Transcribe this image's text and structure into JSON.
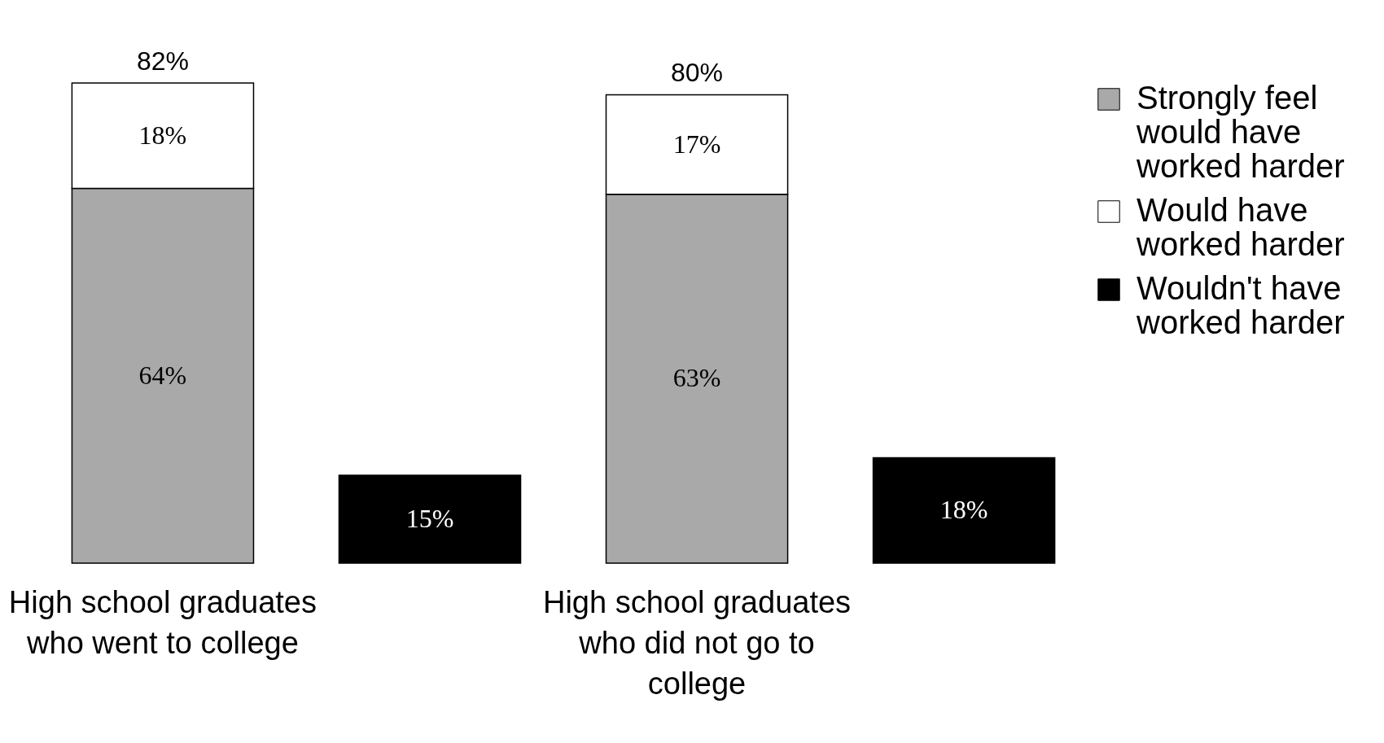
{
  "chart_data": {
    "type": "bar",
    "stacked": true,
    "categories": [
      "High school graduates who went to college",
      null,
      "High school graduates who did not go to college",
      null
    ],
    "series": [
      {
        "name": "Strongly feel would have worked harder",
        "color": "#a9a9a9",
        "values": [
          64,
          null,
          63,
          null
        ],
        "value_labels": [
          "64%",
          null,
          "63%",
          null
        ]
      },
      {
        "name": "Would have worked harder",
        "color": "#ffffff",
        "values": [
          18,
          null,
          17,
          null
        ],
        "value_labels": [
          "18%",
          null,
          "17%",
          null
        ]
      },
      {
        "name": "Wouldn't have worked harder",
        "color": "#000000",
        "values": [
          null,
          15,
          null,
          18
        ],
        "value_labels": [
          null,
          "15%",
          null,
          "18%"
        ]
      }
    ],
    "totals": [
      "82%",
      null,
      "80%",
      null
    ],
    "legend": "top right",
    "tick_labels": "x"
  }
}
